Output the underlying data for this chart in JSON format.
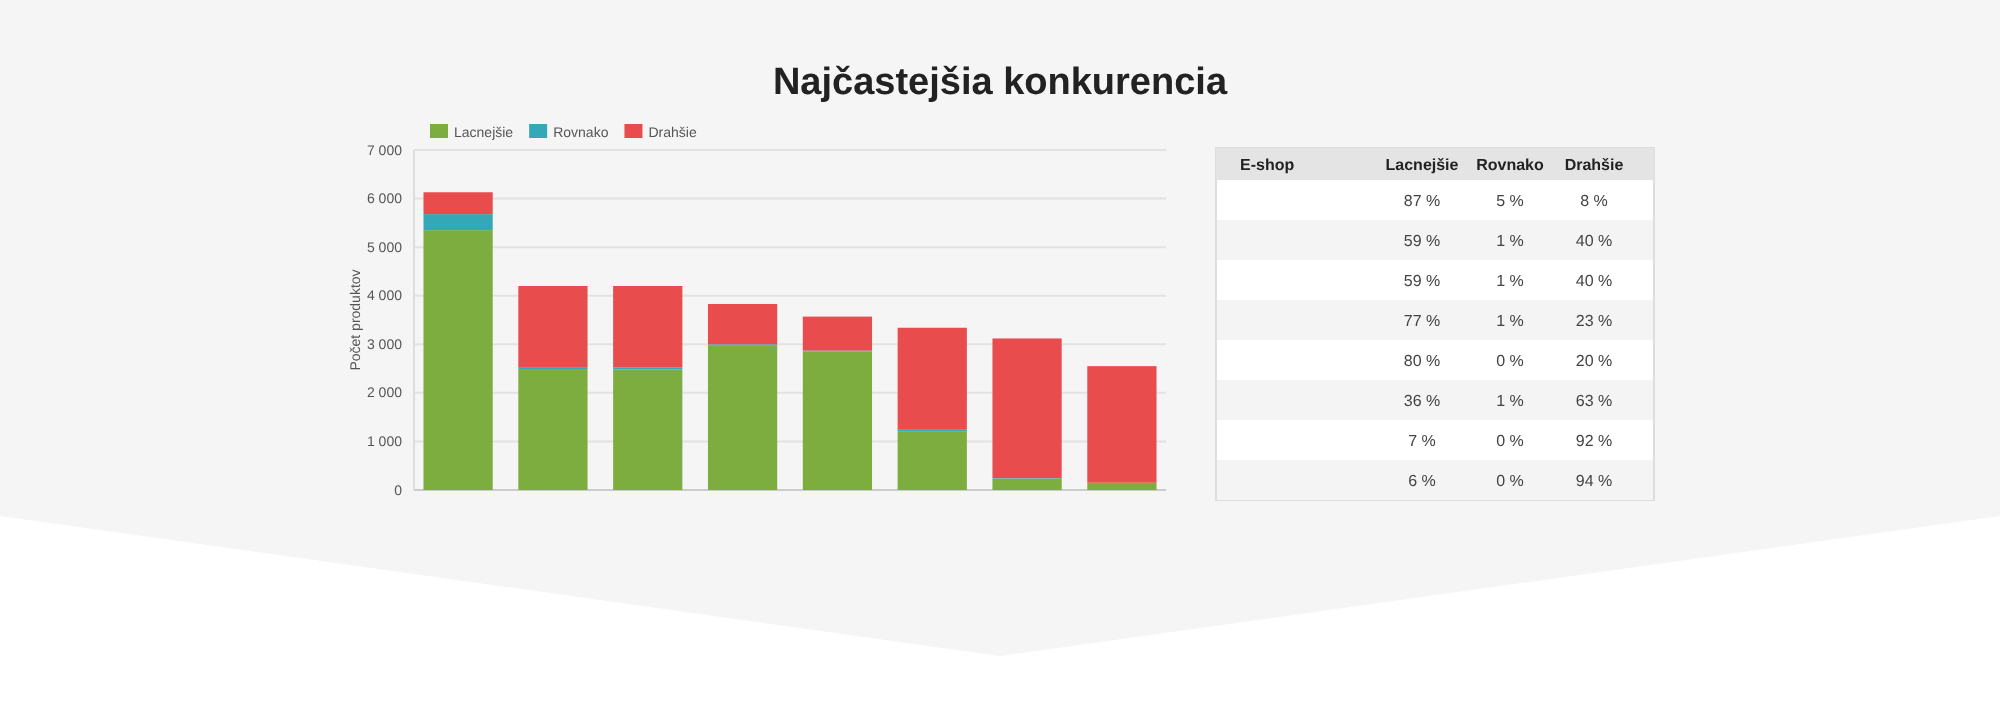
{
  "chart_data": [
    {
      "type": "bar",
      "title": "Najčastejšia konkurencia",
      "ylabel": "Počet produktov",
      "stacked": true,
      "categories": [
        null,
        null,
        null,
        null,
        null,
        null,
        null,
        null
      ],
      "series": [
        {
          "name": "Lacnejšie",
          "color": "#7cad3e",
          "values": [
            5350,
            2490,
            2480,
            2970,
            2850,
            1200,
            235,
            150
          ]
        },
        {
          "name": "Rovnako",
          "color": "#35a8b8",
          "values": [
            330,
            40,
            40,
            30,
            20,
            40,
            10,
            null
          ]
        },
        {
          "name": "Drahšie",
          "color": "#e84c4c",
          "values": [
            450,
            1670,
            1680,
            830,
            700,
            2100,
            2875,
            2400
          ]
        }
      ],
      "ylim": [
        0,
        7000
      ],
      "yticks": [
        {
          "value": 0,
          "label": "0"
        },
        {
          "value": 1000,
          "label": "1 000"
        },
        {
          "value": 2000,
          "label": "2 000"
        },
        {
          "value": 3000,
          "label": "3 000"
        },
        {
          "value": 4000,
          "label": "4 000"
        },
        {
          "value": 5000,
          "label": "5 000"
        },
        {
          "value": 6000,
          "label": "6 000"
        },
        {
          "value": 7000,
          "label": "7 000"
        }
      ],
      "grid": "y",
      "legend": "top left"
    },
    {
      "type": "other",
      "ylabel": "E-shop",
      "categories": [
        "Lacnejšie",
        "Rovnako",
        "Drahšie"
      ],
      "y_categories": [
        null,
        null,
        null,
        null,
        null,
        null,
        null,
        null
      ],
      "cell_labels": [
        [
          "87 %",
          "5 %",
          "8 %"
        ],
        [
          "59 %",
          "1 %",
          "40 %"
        ],
        [
          "59 %",
          "1 %",
          "40 %"
        ],
        [
          "77 %",
          "1 %",
          "23 %"
        ],
        [
          "80 %",
          "0 %",
          "20 %"
        ],
        [
          "36 %",
          "1 %",
          "63 %"
        ],
        [
          "7 %",
          "0 %",
          "92 %"
        ],
        [
          "6 %",
          "0 %",
          "94 %"
        ]
      ]
    }
  ]
}
